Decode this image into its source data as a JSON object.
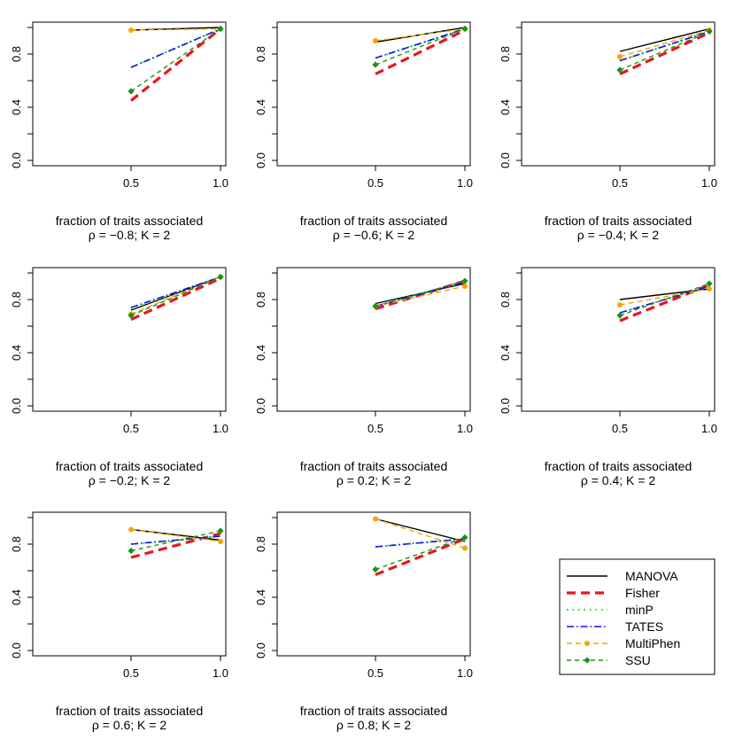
{
  "legend": {
    "entries": [
      {
        "label": "MANOVA",
        "color": "#000000",
        "dash": "",
        "width": 1.4,
        "marker": "none"
      },
      {
        "label": "Fisher",
        "color": "#e8161b",
        "dash": "10,6",
        "width": 3.2,
        "marker": "none"
      },
      {
        "label": "minP",
        "color": "#22dd22",
        "dash": "1.5,5",
        "width": 2.2,
        "marker": "none"
      },
      {
        "label": "TATES",
        "color": "#1010ee",
        "dash": "8,3,1.5,3",
        "width": 1.6,
        "marker": "none"
      },
      {
        "label": "MultiPhen",
        "color": "#f5a500",
        "dash": "6,4",
        "width": 1.4,
        "marker": "circle"
      },
      {
        "label": "SSU",
        "color": "#149614",
        "dash": "5,4",
        "width": 1.4,
        "marker": "diamond"
      }
    ]
  },
  "chart_data": [
    {
      "type": "line",
      "xlabel": "fraction of traits associated",
      "subtitle": "ρ = −0.8; K = 2",
      "x": [
        0.5,
        1.0
      ],
      "xticks": [
        "0.5",
        "1.0"
      ],
      "yticks": [
        "0.0",
        "0.4",
        "0.8"
      ],
      "ylim": [
        0.0,
        1.0
      ],
      "series": [
        {
          "name": "MANOVA",
          "values": [
            0.98,
            1.0
          ]
        },
        {
          "name": "Fisher",
          "values": [
            0.45,
            0.99
          ]
        },
        {
          "name": "minP",
          "values": [
            0.7,
            0.99
          ]
        },
        {
          "name": "TATES",
          "values": [
            0.7,
            0.99
          ]
        },
        {
          "name": "MultiPhen",
          "values": [
            0.98,
            0.99
          ]
        },
        {
          "name": "SSU",
          "values": [
            0.52,
            0.99
          ]
        }
      ]
    },
    {
      "type": "line",
      "xlabel": "fraction of traits associated",
      "subtitle": "ρ = −0.6; K = 2",
      "x": [
        0.5,
        1.0
      ],
      "xticks": [
        "0.5",
        "1.0"
      ],
      "yticks": [
        "0.0",
        "0.4",
        "0.8"
      ],
      "ylim": [
        0.0,
        1.0
      ],
      "series": [
        {
          "name": "MANOVA",
          "values": [
            0.89,
            1.0
          ]
        },
        {
          "name": "Fisher",
          "values": [
            0.65,
            0.98
          ]
        },
        {
          "name": "minP",
          "values": [
            0.77,
            0.99
          ]
        },
        {
          "name": "TATES",
          "values": [
            0.77,
            0.99
          ]
        },
        {
          "name": "MultiPhen",
          "values": [
            0.9,
            0.99
          ]
        },
        {
          "name": "SSU",
          "values": [
            0.72,
            0.99
          ]
        }
      ]
    },
    {
      "type": "line",
      "xlabel": "fraction of traits associated",
      "subtitle": "ρ = −0.4; K = 2",
      "x": [
        0.5,
        1.0
      ],
      "xticks": [
        "0.5",
        "1.0"
      ],
      "yticks": [
        "0.0",
        "0.4",
        "0.8"
      ],
      "ylim": [
        0.0,
        1.0
      ],
      "series": [
        {
          "name": "MANOVA",
          "values": [
            0.82,
            0.99
          ]
        },
        {
          "name": "Fisher",
          "values": [
            0.65,
            0.96
          ]
        },
        {
          "name": "minP",
          "values": [
            0.75,
            0.97
          ]
        },
        {
          "name": "TATES",
          "values": [
            0.75,
            0.97
          ]
        },
        {
          "name": "MultiPhen",
          "values": [
            0.78,
            0.98
          ]
        },
        {
          "name": "SSU",
          "values": [
            0.68,
            0.97
          ]
        }
      ]
    },
    {
      "type": "line",
      "xlabel": "fraction of traits associated",
      "subtitle": "ρ = −0.2; K = 2",
      "x": [
        0.5,
        1.0
      ],
      "xticks": [
        "0.5",
        "1.0"
      ],
      "yticks": [
        "0.0",
        "0.4",
        "0.8"
      ],
      "ylim": [
        0.0,
        1.0
      ],
      "series": [
        {
          "name": "MANOVA",
          "values": [
            0.72,
            0.97
          ]
        },
        {
          "name": "Fisher",
          "values": [
            0.65,
            0.96
          ]
        },
        {
          "name": "minP",
          "values": [
            0.73,
            0.97
          ]
        },
        {
          "name": "TATES",
          "values": [
            0.74,
            0.97
          ]
        },
        {
          "name": "MultiPhen",
          "values": [
            0.69,
            0.97
          ]
        },
        {
          "name": "SSU",
          "values": [
            0.68,
            0.97
          ]
        }
      ]
    },
    {
      "type": "line",
      "xlabel": "fraction of traits associated",
      "subtitle": "ρ = 0.2; K = 2",
      "x": [
        0.5,
        1.0
      ],
      "xticks": [
        "0.5",
        "1.0"
      ],
      "yticks": [
        "0.0",
        "0.4",
        "0.8"
      ],
      "ylim": [
        0.0,
        1.0
      ],
      "series": [
        {
          "name": "MANOVA",
          "values": [
            0.77,
            0.92
          ]
        },
        {
          "name": "Fisher",
          "values": [
            0.73,
            0.94
          ]
        },
        {
          "name": "minP",
          "values": [
            0.75,
            0.93
          ]
        },
        {
          "name": "TATES",
          "values": [
            0.75,
            0.93
          ]
        },
        {
          "name": "MultiPhen",
          "values": [
            0.75,
            0.9
          ]
        },
        {
          "name": "SSU",
          "values": [
            0.75,
            0.94
          ]
        }
      ]
    },
    {
      "type": "line",
      "xlabel": "fraction of traits associated",
      "subtitle": "ρ = 0.4; K = 2",
      "x": [
        0.5,
        1.0
      ],
      "xticks": [
        "0.5",
        "1.0"
      ],
      "yticks": [
        "0.0",
        "0.4",
        "0.8"
      ],
      "ylim": [
        0.0,
        1.0
      ],
      "series": [
        {
          "name": "MANOVA",
          "values": [
            0.8,
            0.88
          ]
        },
        {
          "name": "Fisher",
          "values": [
            0.64,
            0.91
          ]
        },
        {
          "name": "minP",
          "values": [
            0.7,
            0.9
          ]
        },
        {
          "name": "TATES",
          "values": [
            0.7,
            0.9
          ]
        },
        {
          "name": "MultiPhen",
          "values": [
            0.76,
            0.88
          ]
        },
        {
          "name": "SSU",
          "values": [
            0.68,
            0.92
          ]
        }
      ]
    },
    {
      "type": "line",
      "xlabel": "fraction of traits associated",
      "subtitle": "ρ = 0.6; K = 2",
      "x": [
        0.5,
        1.0
      ],
      "xticks": [
        "0.5",
        "1.0"
      ],
      "yticks": [
        "0.0",
        "0.4",
        "0.8"
      ],
      "ylim": [
        0.0,
        1.0
      ],
      "series": [
        {
          "name": "MANOVA",
          "values": [
            0.91,
            0.83
          ]
        },
        {
          "name": "Fisher",
          "values": [
            0.7,
            0.88
          ]
        },
        {
          "name": "minP",
          "values": [
            0.8,
            0.86
          ]
        },
        {
          "name": "TATES",
          "values": [
            0.8,
            0.86
          ]
        },
        {
          "name": "MultiPhen",
          "values": [
            0.91,
            0.82
          ]
        },
        {
          "name": "SSU",
          "values": [
            0.75,
            0.9
          ]
        }
      ]
    },
    {
      "type": "line",
      "xlabel": "fraction of traits associated",
      "subtitle": "ρ = 0.8; K = 2",
      "x": [
        0.5,
        1.0
      ],
      "xticks": [
        "0.5",
        "1.0"
      ],
      "yticks": [
        "0.0",
        "0.4",
        "0.8"
      ],
      "ylim": [
        0.0,
        1.0
      ],
      "series": [
        {
          "name": "MANOVA",
          "values": [
            0.99,
            0.82
          ]
        },
        {
          "name": "Fisher",
          "values": [
            0.57,
            0.84
          ]
        },
        {
          "name": "minP",
          "values": [
            0.78,
            0.84
          ]
        },
        {
          "name": "TATES",
          "values": [
            0.78,
            0.84
          ]
        },
        {
          "name": "MultiPhen",
          "values": [
            0.99,
            0.77
          ]
        },
        {
          "name": "SSU",
          "values": [
            0.61,
            0.85
          ]
        }
      ]
    }
  ]
}
